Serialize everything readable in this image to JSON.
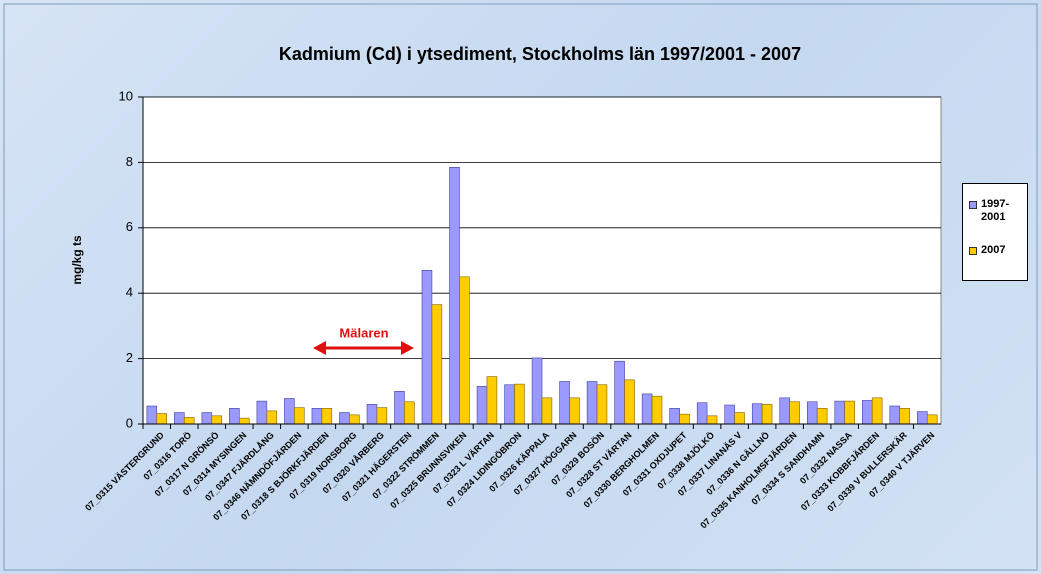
{
  "chart_data": {
    "type": "bar",
    "title": "Kadmium (Cd) i ytsediment,  Stockholms län 1997/2001 - 2007",
    "y_label": "mg/kg ts",
    "annotation": "Mälaren",
    "categories": [
      "07_0315 VÄSTERGRUND",
      "07_0316 TORÖ",
      "07_0317 N GRÖNSÖ",
      "07_0314 MYSINGEN",
      "07_0347 FJÄRDLÅNG",
      "07_0346 NÄMNDÖFJÄRDEN",
      "07_0318 S BJÖRKFJÄRDEN",
      "07_0319 NORSBORG",
      "07_0320 VÅRBERG",
      "07_0321 HÄGERSTEN",
      "07_0322 STRÖMMEN",
      "07_0325 BRUNNSVIKEN",
      "07_0323 L VÄRTAN",
      "07_0324 LIDINGÖBRON",
      "07_0326 KÄPPALA",
      "07_0327 HÖGGARN",
      "07_0329 BOSÖN",
      "07_0328 ST VÄRTAN",
      "07_0330 BERGHOLMEN",
      "07_0331 OXDJUPET",
      "07_0338 MJÖLKÖ",
      "07_0337 LINANÄS V",
      "07_0336 N GÄLLNÖ",
      "07_0335 KANHOLMSFJÄRDEN",
      "07_0334 S SANDHAMN",
      "07_0332 NASSA",
      "07_0333 KOBBFJÄRDEN",
      "07_0339 V BULLERSKÄR",
      "07_0340 V TJÄRVEN"
    ],
    "series": [
      {
        "name": "1997-2001",
        "color": "#9999ff",
        "values": [
          0.55,
          0.35,
          0.35,
          0.48,
          0.7,
          0.78,
          0.48,
          0.35,
          0.6,
          1.0,
          4.7,
          7.85,
          1.15,
          1.2,
          2.02,
          1.3,
          1.3,
          1.92,
          0.92,
          0.48,
          0.65,
          0.58,
          0.62,
          0.8,
          0.68,
          0.7,
          0.72,
          0.55,
          0.38
        ]
      },
      {
        "name": "2007",
        "color": "#ffcc00",
        "values": [
          0.32,
          0.2,
          0.25,
          0.18,
          0.4,
          0.5,
          0.48,
          0.28,
          0.5,
          0.68,
          3.65,
          4.5,
          1.45,
          1.22,
          0.8,
          0.8,
          1.2,
          1.35,
          0.85,
          0.3,
          0.25,
          0.35,
          0.6,
          0.68,
          0.48,
          0.7,
          0.8,
          0.48,
          0.28
        ]
      }
    ],
    "ylim": [
      0,
      10
    ],
    "yticks": [
      0,
      2,
      4,
      6,
      8,
      10
    ],
    "grid": true,
    "legend": "right"
  }
}
